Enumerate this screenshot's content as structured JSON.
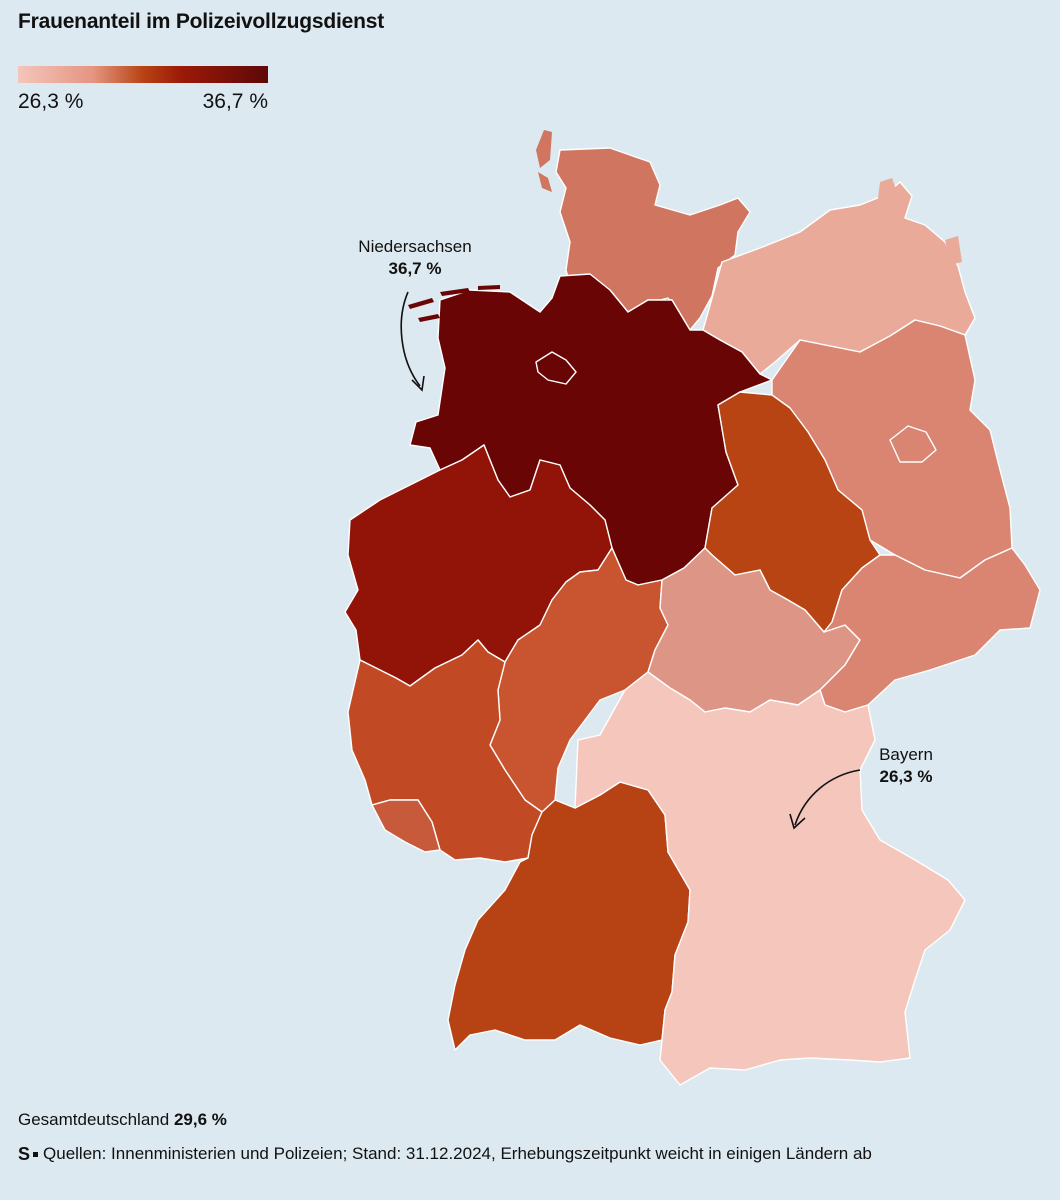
{
  "title": "Frauenanteil im Polizeivollzugsdienst",
  "legend": {
    "min_label": "26,3 %",
    "max_label": "36,7 %",
    "min_value": 26.3,
    "max_value": 36.7,
    "colors": [
      "#f4c6bc",
      "#e59580",
      "#b84313",
      "#9c1a08",
      "#5e0808"
    ]
  },
  "callouts": {
    "niedersachsen": {
      "name": "Niedersachsen",
      "value": "36,7 %"
    },
    "bayern": {
      "name": "Bayern",
      "value": "26,3 %"
    }
  },
  "states": {
    "schleswig-holstein": {
      "color": "#d07560"
    },
    "hamburg": {
      "color": "#8e1208"
    },
    "mecklenburg-vorpommern": {
      "color": "#eaaa99"
    },
    "niedersachsen": {
      "color": "#6a0505"
    },
    "bremen": {
      "color": "#6a0505"
    },
    "brandenburg": {
      "color": "#d98571"
    },
    "berlin": {
      "color": "#d98571"
    },
    "sachsen-anhalt": {
      "color": "#b84313"
    },
    "nordrhein-westfalen": {
      "color": "#921408"
    },
    "hessen": {
      "color": "#c85430"
    },
    "thueringen": {
      "color": "#dd9686"
    },
    "sachsen": {
      "color": "#d98571"
    },
    "rheinland-pfalz": {
      "color": "#c14a25"
    },
    "saarland": {
      "color": "#c85a3c"
    },
    "baden-wuerttemberg": {
      "color": "#b74214"
    },
    "bayern": {
      "color": "#f4c6bc"
    }
  },
  "footer": {
    "total_label": "Gesamtdeutschland",
    "total_value": "29,6 %",
    "logo": "S",
    "source": "Quellen: Innenministerien und Polizeien; Stand: 31.12.2024, Erhebungszeitpunkt weicht in einigen Ländern ab"
  }
}
